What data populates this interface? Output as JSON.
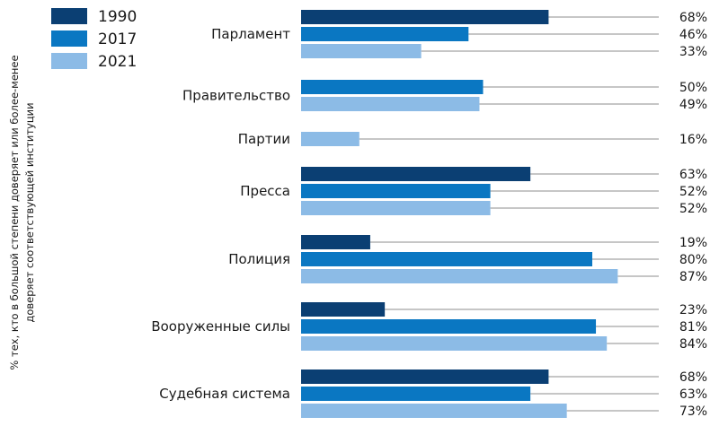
{
  "chart_data": {
    "type": "bar",
    "orientation": "horizontal",
    "ylabel_lines": [
      "% тех, кто в большой степени доверяет или более-менее",
      "доверяет соответствующей институции"
    ],
    "xlim": [
      0,
      100
    ],
    "grid": false,
    "legend_position": "top-left",
    "series": [
      {
        "name": "1990",
        "color": "#0b3f73"
      },
      {
        "name": "2017",
        "color": "#0a77c2"
      },
      {
        "name": "2021",
        "color": "#8cbbe6"
      }
    ],
    "groups": [
      {
        "category": "Парламент",
        "bars": [
          {
            "series": "1990",
            "value": 68,
            "label": "68%"
          },
          {
            "series": "2017",
            "value": 46,
            "label": "46%"
          },
          {
            "series": "2021",
            "value": 33,
            "label": "33%"
          }
        ]
      },
      {
        "category": "Правительство",
        "bars": [
          {
            "series": "2017",
            "value": 50,
            "label": "50%"
          },
          {
            "series": "2021",
            "value": 49,
            "label": "49%"
          }
        ]
      },
      {
        "category": "Партии",
        "bars": [
          {
            "series": "2021",
            "value": 16,
            "label": "16%"
          }
        ]
      },
      {
        "category": "Пресса",
        "bars": [
          {
            "series": "1990",
            "value": 63,
            "label": "63%"
          },
          {
            "series": "2017",
            "value": 52,
            "label": "52%"
          },
          {
            "series": "2021",
            "value": 52,
            "label": "52%"
          }
        ]
      },
      {
        "category": "Полиция",
        "bars": [
          {
            "series": "1990",
            "value": 19,
            "label": "19%"
          },
          {
            "series": "2017",
            "value": 80,
            "label": "80%"
          },
          {
            "series": "2021",
            "value": 87,
            "label": "87%"
          }
        ]
      },
      {
        "category": "Вооруженные силы",
        "bars": [
          {
            "series": "1990",
            "value": 23,
            "label": "23%"
          },
          {
            "series": "2017",
            "value": 81,
            "label": "81%"
          },
          {
            "series": "2021",
            "value": 84,
            "label": "84%"
          }
        ]
      },
      {
        "category": "Судебная система",
        "bars": [
          {
            "series": "1990",
            "value": 68,
            "label": "68%"
          },
          {
            "series": "2017",
            "value": 63,
            "label": "63%"
          },
          {
            "series": "2021",
            "value": 73,
            "label": "73%"
          }
        ]
      }
    ]
  }
}
